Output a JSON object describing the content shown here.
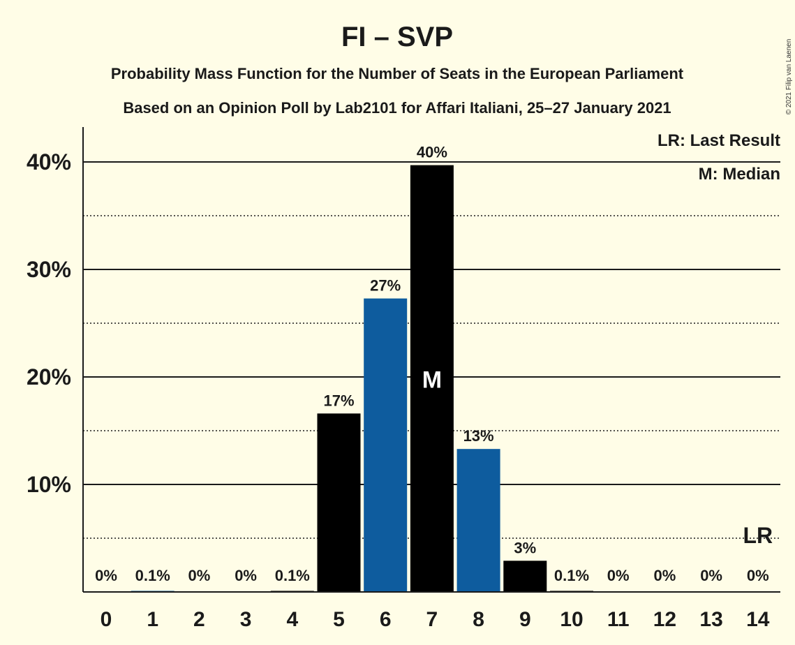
{
  "chart_data": {
    "type": "bar",
    "title": "FI – SVP",
    "subtitle_1": "Probability Mass Function for the Number of Seats in the European Parliament",
    "subtitle_2": "Based on an Opinion Poll by Lab2101 for Affari Italiani, 25–27 January 2021",
    "copyright": "© 2021 Filip van Laenen",
    "categories": [
      "0",
      "1",
      "2",
      "3",
      "4",
      "5",
      "6",
      "7",
      "8",
      "9",
      "10",
      "11",
      "12",
      "13",
      "14"
    ],
    "values": [
      0,
      0.1,
      0,
      0,
      0.1,
      16.6,
      27.3,
      39.7,
      13.3,
      2.9,
      0.1,
      0,
      0,
      0,
      0
    ],
    "labels": [
      "0%",
      "0.1%",
      "0%",
      "0%",
      "0.1%",
      "17%",
      "27%",
      "40%",
      "13%",
      "3%",
      "0.1%",
      "0%",
      "0%",
      "0%",
      "0%"
    ],
    "bar_colors": [
      "#000000",
      "#0E5C9E",
      "#000000",
      "#0E5C9E",
      "#000000",
      "#000000",
      "#0E5C9E",
      "#000000",
      "#0E5C9E",
      "#000000",
      "#000000",
      "#0E5C9E",
      "#000000",
      "#0E5C9E",
      "#000000"
    ],
    "ylim": [
      0,
      43
    ],
    "yticks_major": [
      "10%",
      "20%",
      "30%",
      "40%"
    ],
    "ytick_values": [
      10,
      20,
      30,
      40
    ],
    "minor_grid_values": [
      5,
      15,
      25,
      35
    ],
    "median_seat": "7",
    "median_marker": "M",
    "last_result_seat": "14",
    "last_result_marker": "LR",
    "last_result_level": 5,
    "legend": [
      "LR: Last Result",
      "M: Median"
    ],
    "grid": true
  }
}
